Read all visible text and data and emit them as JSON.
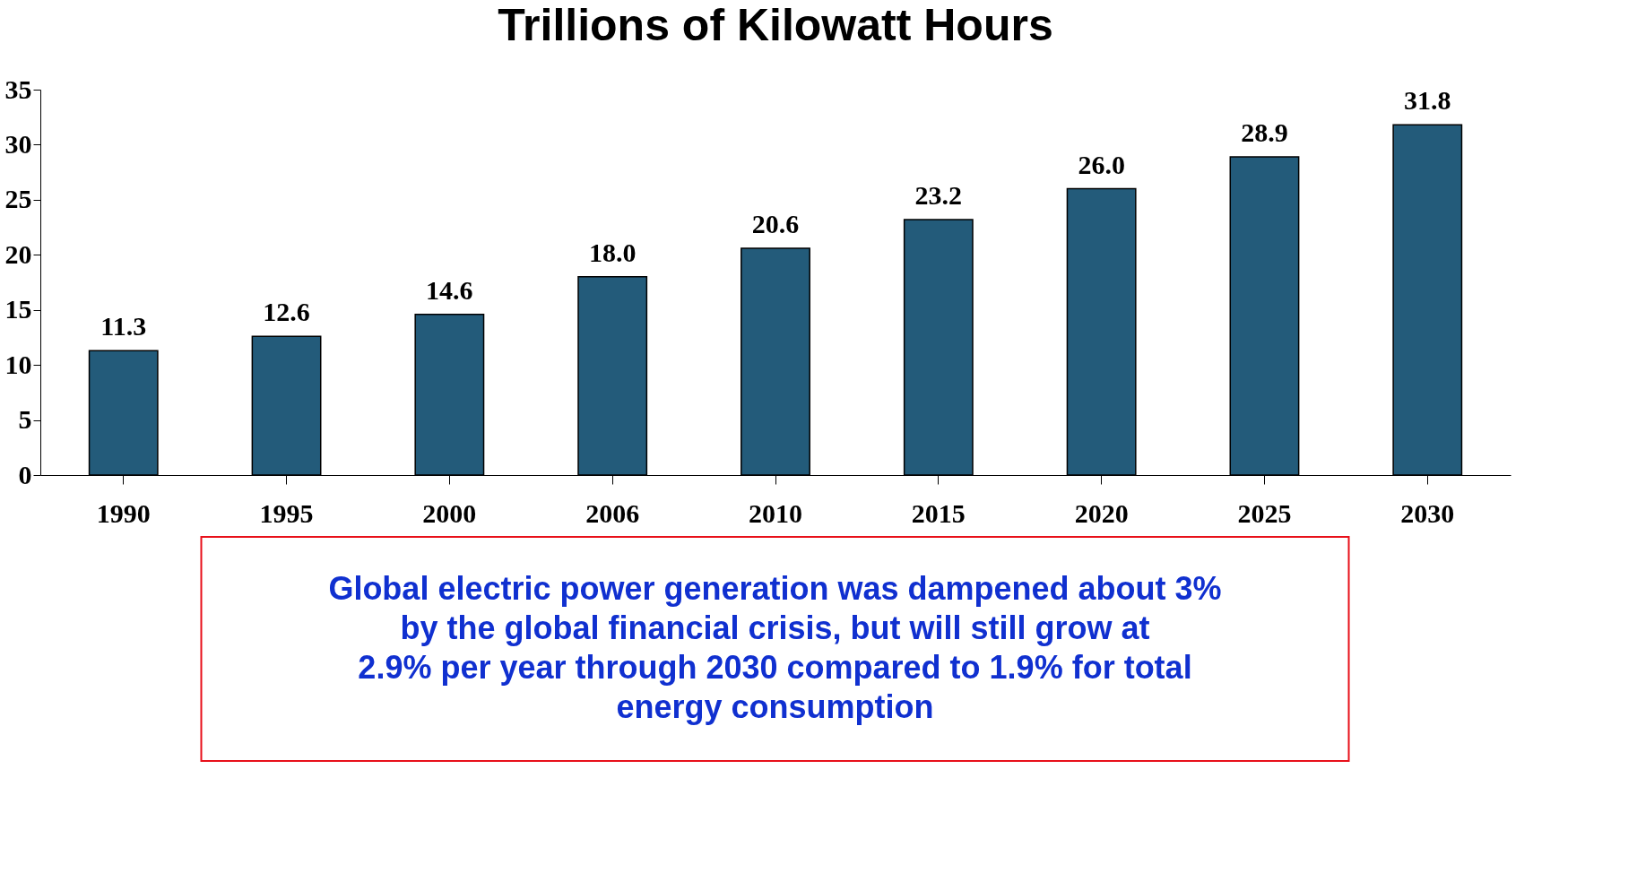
{
  "chart_data": {
    "type": "bar",
    "title": "Trillions of Kilowatt Hours",
    "categories": [
      "1990",
      "1995",
      "2000",
      "2006",
      "2010",
      "2015",
      "2020",
      "2025",
      "2030"
    ],
    "values": [
      11.3,
      12.6,
      14.6,
      18.0,
      20.6,
      23.2,
      26.0,
      28.9,
      31.8
    ],
    "color": "#235b7a",
    "ylim": [
      0,
      35
    ],
    "yticks": [
      0,
      5,
      10,
      15,
      20,
      25,
      30,
      35
    ],
    "grid": false,
    "value_labels": [
      "11.3",
      "12.6",
      "14.6",
      "18.0",
      "20.6",
      "23.2",
      "26.0",
      "28.9",
      "31.8"
    ],
    "annotations": [
      "Global electric power generation was dampened about 3% by the global financial crisis, but will still grow at 2.9% per year through 2030 compared to 1.9% for total energy consumption"
    ]
  }
}
